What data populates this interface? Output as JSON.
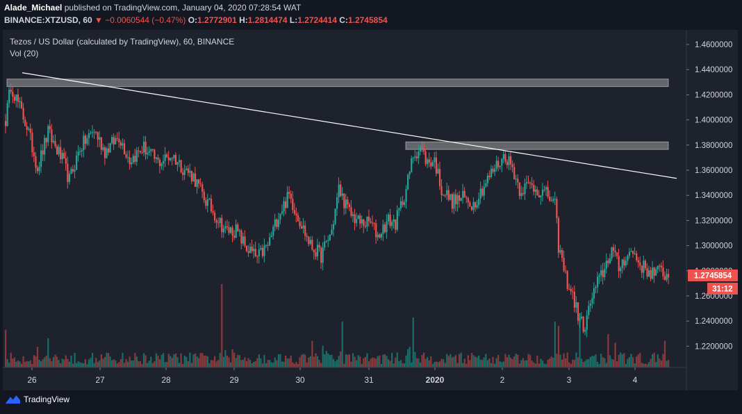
{
  "header": {
    "author": "Alade_Michael",
    "published_text": "published on TradingView.com, January 04, 2020 07:28:54 WAT",
    "symbol": "BINANCE:XTZUSD, 60",
    "change": "▼ −0.0060544 (−0.47%)",
    "ohlc": [
      {
        "label": "O:",
        "value": "1.2772901"
      },
      {
        "label": "H:",
        "value": "1.2814474"
      },
      {
        "label": "L:",
        "value": "1.2724414"
      },
      {
        "label": "C:",
        "value": "1.2745854"
      }
    ]
  },
  "legend": {
    "title": "Tezos / US Dollar (calculated by TradingView), 60, BINANCE",
    "vol": "Vol (20)"
  },
  "colors": {
    "background": "#131722",
    "up": "#26a69a",
    "down": "#ef5350",
    "vol_up": "#1b6e68",
    "vol_down": "#8b3a3c",
    "zone": "#9e9e9e",
    "trendline": "#ffffff"
  },
  "price_badge": {
    "value": "1.2745854",
    "countdown": "31:12"
  },
  "footer": {
    "brand": "TradingView",
    "logo_icon": "tradingview-logo-icon"
  },
  "chart_data": {
    "type": "candlestick",
    "interval": "60",
    "ylim": [
      1.2,
      1.47
    ],
    "y_ticks": [
      "1.4600000",
      "1.4400000",
      "1.4200000",
      "1.4000000",
      "1.3800000",
      "1.3600000",
      "1.3400000",
      "1.3200000",
      "1.3000000",
      "1.2800000",
      "1.2600000",
      "1.2400000",
      "1.2200000"
    ],
    "x_ticks": [
      "26",
      "27",
      "28",
      "29",
      "30",
      "31",
      "2020",
      "2",
      "3",
      "4"
    ],
    "last_price": 1.2745854,
    "resistance_zones": [
      {
        "low": 1.4265,
        "high": 1.4325
      },
      {
        "low": 1.3765,
        "high": 1.3825
      }
    ],
    "trendline": {
      "from": {
        "x": "2019-12-26 00:00",
        "y": 1.4375
      },
      "to": {
        "x": "2020-01-04 14:00",
        "y": 1.3535
      }
    },
    "anchors": [
      {
        "t": 0,
        "p": 1.4
      },
      {
        "t": 3,
        "p": 1.428
      },
      {
        "t": 12,
        "p": 1.395
      },
      {
        "t": 18,
        "p": 1.362
      },
      {
        "t": 24,
        "p": 1.39
      },
      {
        "t": 32,
        "p": 1.368
      },
      {
        "t": 36,
        "p": 1.352
      },
      {
        "t": 42,
        "p": 1.378
      },
      {
        "t": 50,
        "p": 1.392
      },
      {
        "t": 56,
        "p": 1.375
      },
      {
        "t": 64,
        "p": 1.387
      },
      {
        "t": 70,
        "p": 1.368
      },
      {
        "t": 78,
        "p": 1.378
      },
      {
        "t": 86,
        "p": 1.366
      },
      {
        "t": 94,
        "p": 1.372
      },
      {
        "t": 100,
        "p": 1.362
      },
      {
        "t": 106,
        "p": 1.355
      },
      {
        "t": 112,
        "p": 1.338
      },
      {
        "t": 118,
        "p": 1.325
      },
      {
        "t": 124,
        "p": 1.312
      },
      {
        "t": 130,
        "p": 1.312
      },
      {
        "t": 136,
        "p": 1.298
      },
      {
        "t": 142,
        "p": 1.29
      },
      {
        "t": 148,
        "p": 1.3
      },
      {
        "t": 154,
        "p": 1.325
      },
      {
        "t": 160,
        "p": 1.34
      },
      {
        "t": 166,
        "p": 1.32
      },
      {
        "t": 172,
        "p": 1.3
      },
      {
        "t": 178,
        "p": 1.292
      },
      {
        "t": 184,
        "p": 1.312
      },
      {
        "t": 188,
        "p": 1.345
      },
      {
        "t": 194,
        "p": 1.326
      },
      {
        "t": 200,
        "p": 1.318
      },
      {
        "t": 206,
        "p": 1.318
      },
      {
        "t": 210,
        "p": 1.308
      },
      {
        "t": 216,
        "p": 1.32
      },
      {
        "t": 220,
        "p": 1.318
      },
      {
        "t": 226,
        "p": 1.345
      },
      {
        "t": 230,
        "p": 1.372
      },
      {
        "t": 234,
        "p": 1.378
      },
      {
        "t": 238,
        "p": 1.366
      },
      {
        "t": 242,
        "p": 1.368
      },
      {
        "t": 246,
        "p": 1.345
      },
      {
        "t": 252,
        "p": 1.335
      },
      {
        "t": 258,
        "p": 1.338
      },
      {
        "t": 264,
        "p": 1.333
      },
      {
        "t": 270,
        "p": 1.348
      },
      {
        "t": 276,
        "p": 1.362
      },
      {
        "t": 282,
        "p": 1.372
      },
      {
        "t": 286,
        "p": 1.362
      },
      {
        "t": 290,
        "p": 1.345
      },
      {
        "t": 296,
        "p": 1.348
      },
      {
        "t": 302,
        "p": 1.343
      },
      {
        "t": 306,
        "p": 1.34
      },
      {
        "t": 310,
        "p": 1.332
      },
      {
        "t": 312,
        "p": 1.3
      },
      {
        "t": 316,
        "p": 1.275
      },
      {
        "t": 320,
        "p": 1.26
      },
      {
        "t": 324,
        "p": 1.24
      },
      {
        "t": 327,
        "p": 1.235
      },
      {
        "t": 330,
        "p": 1.255
      },
      {
        "t": 334,
        "p": 1.27
      },
      {
        "t": 338,
        "p": 1.282
      },
      {
        "t": 342,
        "p": 1.298
      },
      {
        "t": 346,
        "p": 1.282
      },
      {
        "t": 350,
        "p": 1.292
      },
      {
        "t": 354,
        "p": 1.295
      },
      {
        "t": 358,
        "p": 1.285
      },
      {
        "t": 362,
        "p": 1.28
      },
      {
        "t": 366,
        "p": 1.278
      },
      {
        "t": 370,
        "p": 1.28
      },
      {
        "t": 374,
        "p": 1.2745854
      }
    ],
    "volume_spikes": [
      {
        "t": 0,
        "v": 0.45
      },
      {
        "t": 24,
        "v": 0.35
      },
      {
        "t": 122,
        "v": 1.0
      },
      {
        "t": 190,
        "v": 0.55
      },
      {
        "t": 230,
        "v": 0.6
      },
      {
        "t": 310,
        "v": 0.55
      },
      {
        "t": 312,
        "v": 0.5
      },
      {
        "t": 324,
        "v": 0.65
      },
      {
        "t": 340,
        "v": 0.4
      }
    ]
  }
}
